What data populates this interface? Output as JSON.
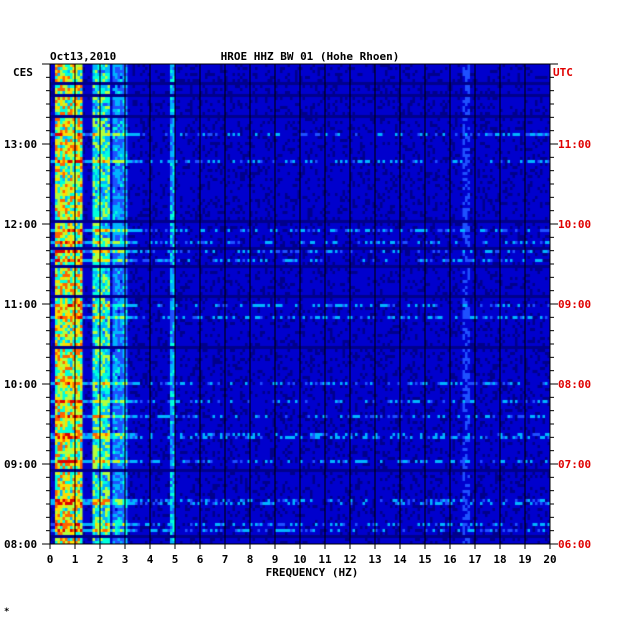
{
  "chart_data": {
    "type": "heatmap",
    "date": "Oct13,2010",
    "title": "HROE HHZ BW 01 (Hohe Rhoen)",
    "left_axis_label": "CES",
    "right_axis_label": "UTC",
    "xlabel": "FREQUENCY (HZ)",
    "xlim": [
      0,
      20
    ],
    "x_ticks": [
      "0",
      "1",
      "2",
      "3",
      "4",
      "5",
      "6",
      "7",
      "8",
      "9",
      "10",
      "11",
      "12",
      "13",
      "14",
      "15",
      "16",
      "17",
      "18",
      "19",
      "20"
    ],
    "left_y_ticks": [
      "08:00",
      "09:00",
      "10:00",
      "11:00",
      "12:00",
      "13:00"
    ],
    "right_y_ticks": [
      "06:00",
      "07:00",
      "08:00",
      "09:00",
      "10:00",
      "11:00"
    ],
    "time_range_ces": [
      "08:00",
      "14:00"
    ],
    "colorscale": [
      "#00008b",
      "#0000cd",
      "#1e50ff",
      "#00b4ff",
      "#00ffdc",
      "#b4ff3c",
      "#ffdc00",
      "#ff6400",
      "#dc0000"
    ],
    "background_color": "#0a1aa8",
    "grid": true,
    "footnote": "*",
    "energy_features": [
      {
        "desc": "microseismic band",
        "freq": [
          0.2,
          1.3
        ],
        "level": 0.85
      },
      {
        "desc": "secondary band",
        "freq": [
          1.7,
          2.4
        ],
        "level": 0.65
      },
      {
        "desc": "3 Hz band",
        "freq": [
          2.5,
          3.1
        ],
        "level": 0.45
      },
      {
        "desc": "5 Hz line",
        "freq": [
          4.85,
          5.0
        ],
        "level": 0.5
      },
      {
        "desc": "17 Hz line",
        "freq": [
          16.5,
          16.8
        ],
        "level": 0.3
      }
    ]
  }
}
